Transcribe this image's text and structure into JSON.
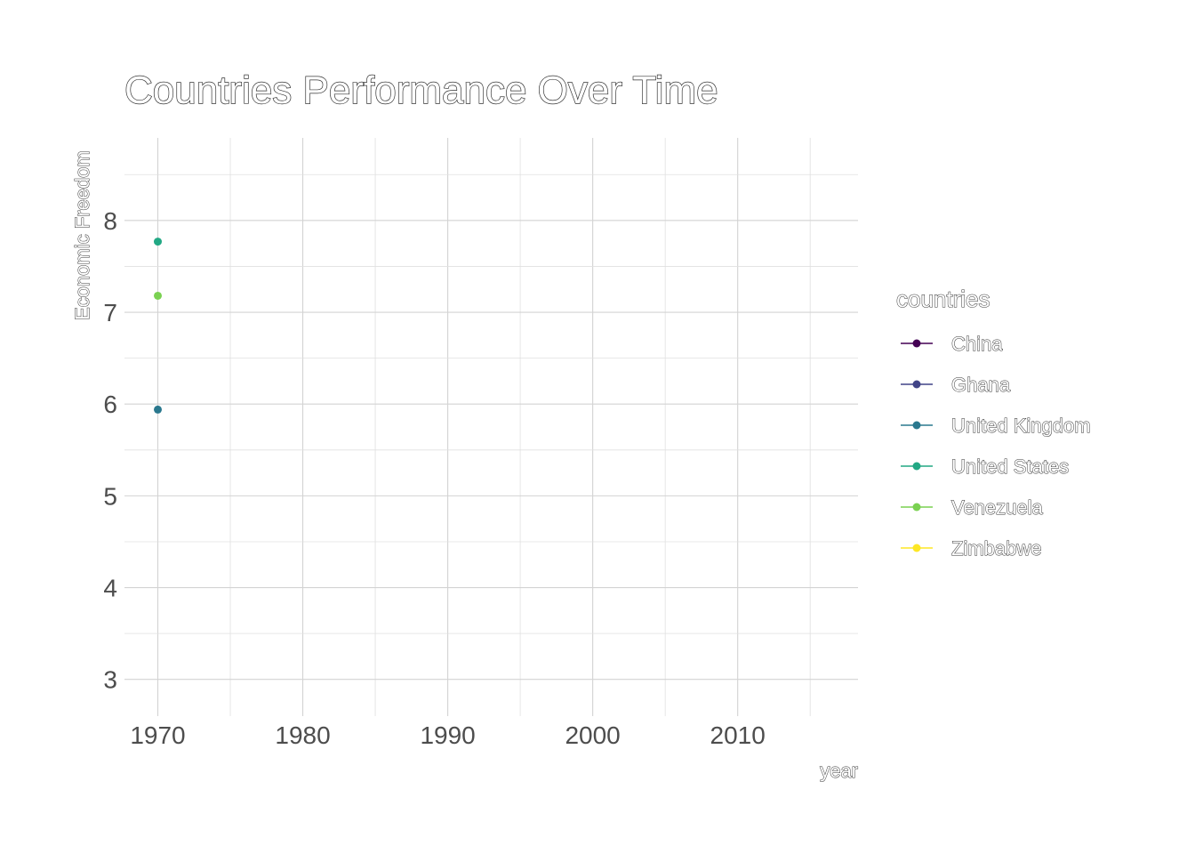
{
  "chart_data": {
    "type": "scatter",
    "title": "Countries Performance Over Time",
    "xlabel": "year",
    "ylabel": "Economic Freedom",
    "xlim": [
      1967.7,
      2018.3
    ],
    "ylim": [
      2.6,
      8.9
    ],
    "x_ticks": [
      "1970",
      "1980",
      "1990",
      "2000",
      "2010"
    ],
    "x_tick_values": [
      1970,
      1980,
      1990,
      2000,
      2010
    ],
    "y_ticks": [
      "3",
      "4",
      "5",
      "6",
      "7",
      "8"
    ],
    "y_tick_values": [
      3,
      4,
      5,
      6,
      7,
      8
    ],
    "grid": true,
    "legend_position": "right",
    "legend_title": "countries",
    "series": [
      {
        "name": "China",
        "color": "#440154",
        "points": []
      },
      {
        "name": "Ghana",
        "color": "#414487",
        "points": []
      },
      {
        "name": "United Kingdom",
        "color": "#2A788E",
        "points": [
          [
            1970,
            5.94
          ]
        ]
      },
      {
        "name": "United States",
        "color": "#22A884",
        "points": [
          [
            1970,
            7.77
          ]
        ]
      },
      {
        "name": "Venezuela",
        "color": "#7AD151",
        "points": [
          [
            1970,
            7.18
          ]
        ]
      },
      {
        "name": "Zimbabwe",
        "color": "#FDE725",
        "points": []
      }
    ]
  }
}
